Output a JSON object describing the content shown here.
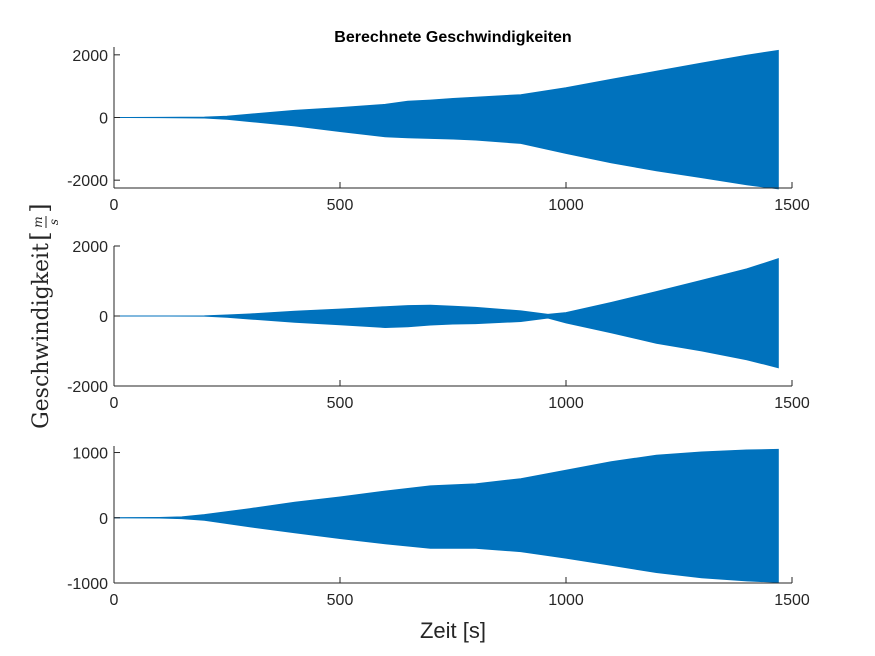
{
  "figure": {
    "title": "Berechnete Geschwindigkeiten",
    "xlabel": "Zeit [s]",
    "ylabel": "Geschwindigkeit",
    "ylabel_unit_num": "m",
    "ylabel_unit_den": "s",
    "series_color": "#0072BD"
  },
  "chart_data": [
    {
      "type": "area",
      "title": "Berechnete Geschwindigkeiten",
      "xlim": [
        0,
        1500
      ],
      "ylim": [
        -2250,
        2250
      ],
      "xticks": [
        0,
        500,
        1000,
        1500
      ],
      "yticks": [
        -2000,
        0,
        2000
      ],
      "x": [
        0,
        100,
        200,
        250,
        300,
        400,
        500,
        600,
        650,
        700,
        750,
        800,
        900,
        1000,
        1100,
        1200,
        1300,
        1400,
        1470
      ],
      "upper": [
        0,
        5,
        15,
        40,
        110,
        230,
        320,
        420,
        520,
        560,
        610,
        650,
        730,
        950,
        1220,
        1480,
        1740,
        1990,
        2140
      ],
      "lower": [
        0,
        -5,
        -20,
        -60,
        -130,
        -270,
        -450,
        -620,
        -650,
        -670,
        -690,
        -720,
        -830,
        -1150,
        -1450,
        -1700,
        -1920,
        -2150,
        -2280
      ]
    },
    {
      "type": "area",
      "xlim": [
        0,
        1500
      ],
      "ylim": [
        -2000,
        2000
      ],
      "xticks": [
        0,
        500,
        1000,
        1500
      ],
      "yticks": [
        -2000,
        0,
        2000
      ],
      "x": [
        0,
        200,
        250,
        300,
        400,
        500,
        600,
        650,
        700,
        750,
        800,
        900,
        960,
        1000,
        1100,
        1200,
        1300,
        1400,
        1470
      ],
      "upper": [
        0,
        5,
        30,
        60,
        140,
        200,
        270,
        300,
        310,
        280,
        250,
        150,
        50,
        100,
        390,
        700,
        1020,
        1350,
        1640
      ],
      "lower": [
        0,
        -5,
        -40,
        -90,
        -180,
        -250,
        -330,
        -310,
        -260,
        -230,
        -220,
        -160,
        -60,
        -200,
        -480,
        -780,
        -1000,
        -1250,
        -1480
      ]
    },
    {
      "type": "area",
      "xlim": [
        0,
        1500
      ],
      "ylim": [
        -1000,
        1100
      ],
      "xticks": [
        0,
        500,
        1000,
        1500
      ],
      "yticks": [
        -1000,
        0,
        1000
      ],
      "x": [
        0,
        100,
        150,
        200,
        300,
        400,
        500,
        600,
        700,
        800,
        900,
        1000,
        1100,
        1200,
        1300,
        1400,
        1470
      ],
      "upper": [
        0,
        5,
        15,
        50,
        140,
        240,
        320,
        410,
        490,
        520,
        600,
        730,
        860,
        960,
        1010,
        1040,
        1050
      ],
      "lower": [
        0,
        -5,
        -15,
        -40,
        -140,
        -230,
        -320,
        -400,
        -470,
        -470,
        -520,
        -620,
        -730,
        -840,
        -920,
        -970,
        -990
      ]
    }
  ]
}
